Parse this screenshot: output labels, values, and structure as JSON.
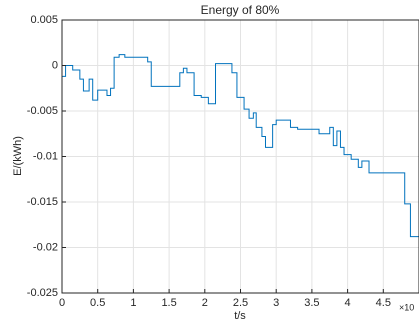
{
  "chart_data": {
    "type": "line",
    "title": "Energy of 80%",
    "x_label": "t/s",
    "y_label": "E/(kWh)",
    "x_exponent": "×10",
    "xlim": [
      0,
      5
    ],
    "ylim": [
      -0.025,
      0.005
    ],
    "xticks": [
      0,
      0.5,
      1,
      1.5,
      2,
      2.5,
      3,
      3.5,
      4,
      4.5
    ],
    "yticks": [
      0.005,
      0,
      -0.005,
      -0.01,
      -0.015,
      -0.02,
      -0.025
    ],
    "grid": true,
    "series": [
      {
        "color": "#0072bd",
        "x": [
          0,
          0.05,
          0.05,
          0.15,
          0.15,
          0.25,
          0.25,
          0.3,
          0.3,
          0.38,
          0.38,
          0.43,
          0.43,
          0.5,
          0.5,
          0.63,
          0.63,
          0.68,
          0.68,
          0.73,
          0.73,
          0.8,
          0.8,
          0.88,
          0.88,
          1.2,
          1.2,
          1.25,
          1.25,
          1.65,
          1.65,
          1.7,
          1.7,
          1.75,
          1.75,
          1.85,
          1.85,
          1.95,
          1.95,
          2.05,
          2.05,
          2.15,
          2.15,
          2.38,
          2.38,
          2.45,
          2.45,
          2.55,
          2.55,
          2.62,
          2.62,
          2.68,
          2.68,
          2.72,
          2.72,
          2.8,
          2.8,
          2.85,
          2.85,
          2.95,
          2.95,
          3.0,
          3.0,
          3.2,
          3.2,
          3.3,
          3.3,
          3.6,
          3.6,
          3.75,
          3.75,
          3.8,
          3.8,
          3.85,
          3.85,
          3.9,
          3.9,
          3.95,
          3.95,
          4.05,
          4.05,
          4.15,
          4.15,
          4.2,
          4.2,
          4.3,
          4.3,
          4.8,
          4.8,
          4.88,
          4.88,
          5.0
        ],
        "values": [
          -0.0012,
          -0.0012,
          0,
          0,
          -0.0005,
          -0.0005,
          -0.0015,
          -0.0015,
          -0.0028,
          -0.0028,
          -0.0015,
          -0.0015,
          -0.0038,
          -0.0038,
          -0.0027,
          -0.0027,
          -0.0033,
          -0.0033,
          -0.0025,
          -0.0025,
          0.0009,
          0.0009,
          0.0012,
          0.0012,
          0.0009,
          0.0009,
          0.0004,
          0.0004,
          -0.0023,
          -0.0023,
          -0.0008,
          -0.0008,
          -0.0003,
          -0.0003,
          -0.0008,
          -0.0008,
          -0.0033,
          -0.0033,
          -0.0035,
          -0.0035,
          -0.0042,
          -0.0042,
          0.0002,
          0.0002,
          -0.0008,
          -0.0008,
          -0.0035,
          -0.0035,
          -0.0048,
          -0.0048,
          -0.0058,
          -0.0058,
          -0.0052,
          -0.0052,
          -0.0068,
          -0.0068,
          -0.0078,
          -0.0078,
          -0.009,
          -0.009,
          -0.0065,
          -0.0065,
          -0.006,
          -0.006,
          -0.0068,
          -0.0068,
          -0.007,
          -0.007,
          -0.0075,
          -0.0075,
          -0.0068,
          -0.0068,
          -0.0088,
          -0.0088,
          -0.0072,
          -0.0072,
          -0.009,
          -0.009,
          -0.0098,
          -0.0098,
          -0.0103,
          -0.0103,
          -0.0112,
          -0.0112,
          -0.0105,
          -0.0105,
          -0.0118,
          -0.0118,
          -0.0152,
          -0.0152,
          -0.0188,
          -0.0188
        ]
      }
    ]
  }
}
